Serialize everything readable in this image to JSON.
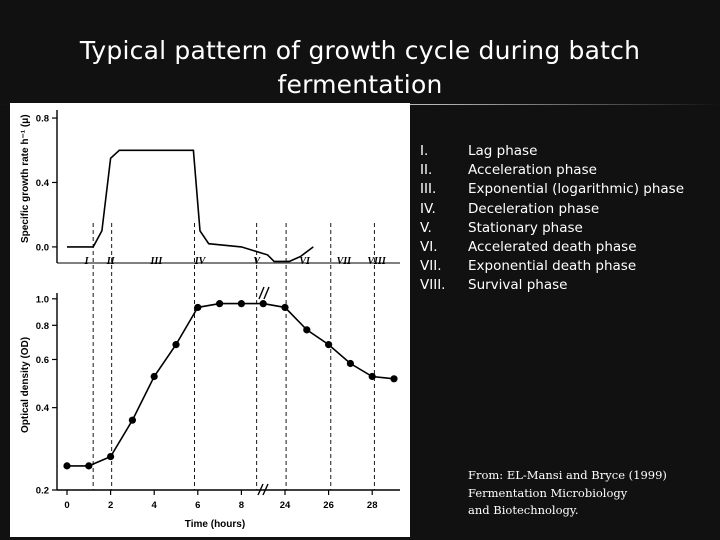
{
  "slide": {
    "title_line1": "Typical pattern of growth cycle during batch",
    "title_line2": "fermentation"
  },
  "chart_data": [
    {
      "type": "line",
      "name": "specific-growth-rate",
      "ylabel": "Specific growth rate h⁻¹ (μ)",
      "yticks": [
        "0.0",
        "0.4",
        "0.8"
      ],
      "ylim": [
        -0.1,
        0.85
      ],
      "x_categories": [
        "0",
        "2",
        "4",
        "6",
        "8",
        "24",
        "26",
        "28"
      ],
      "series": [
        {
          "name": "growth rate",
          "x": [
            0,
            1.2,
            1.6,
            2.0,
            2.4,
            5.8,
            6.1,
            6.5,
            8.0,
            9.2,
            9.5,
            10.2,
            10.7,
            11.3
          ],
          "y": [
            0.0,
            0.0,
            0.1,
            0.55,
            0.6,
            0.6,
            0.1,
            0.02,
            0.0,
            -0.05,
            -0.09,
            -0.09,
            -0.06,
            0.0
          ]
        }
      ],
      "phase_labels": [
        "I",
        "II",
        "III",
        "IV",
        "V",
        "VI",
        "VII",
        "VIII"
      ],
      "phase_label_x": [
        0.9,
        2.0,
        4.1,
        6.1,
        8.7,
        10.9,
        12.7,
        14.2
      ],
      "phase_boundaries_x": [
        1.2,
        2.05,
        5.85,
        8.7,
        10.05,
        12.1,
        14.1
      ]
    },
    {
      "type": "line",
      "name": "optical-density",
      "xlabel": "Time (hours)",
      "ylabel": "Optical density (OD)",
      "yscale": "log",
      "yticks": [
        "0.2",
        "0.4",
        "0.6",
        "0.8",
        "1.0"
      ],
      "ylim": [
        0.2,
        1.05
      ],
      "x_categories": [
        "0",
        "2",
        "4",
        "6",
        "8",
        "24",
        "26",
        "28"
      ],
      "axis_break_between": [
        "8",
        "24"
      ],
      "series": [
        {
          "name": "OD",
          "x": [
            0,
            1,
            2,
            3,
            4,
            5,
            6,
            7,
            8,
            9,
            10,
            11,
            12,
            13,
            14,
            15
          ],
          "y": [
            0.245,
            0.245,
            0.265,
            0.36,
            0.52,
            0.68,
            0.93,
            0.96,
            0.96,
            0.96,
            0.93,
            0.77,
            0.68,
            0.58,
            0.52,
            0.51
          ]
        }
      ]
    }
  ],
  "legend": {
    "items": [
      {
        "num": "I.",
        "label": "Lag phase"
      },
      {
        "num": "II.",
        "label": "Acceleration phase"
      },
      {
        "num": "III.",
        "label": "Exponential (logarithmic) phase"
      },
      {
        "num": "IV.",
        "label": "Deceleration phase"
      },
      {
        "num": "V.",
        "label": "Stationary phase"
      },
      {
        "num": "VI.",
        "label": "Accelerated death phase"
      },
      {
        "num": "VII.",
        "label": "Exponential death phase"
      },
      {
        "num": "VIII.",
        "label": "Survival phase"
      }
    ]
  },
  "citation": {
    "line1": "From: EL-Mansi and Bryce (1999)",
    "line2": "Fermentation Microbiology",
    "line3": "and Biotechnology."
  },
  "colors": {
    "background": "#111111",
    "panel": "#ffffff",
    "ink": "#000000",
    "text": "#ffffff"
  }
}
